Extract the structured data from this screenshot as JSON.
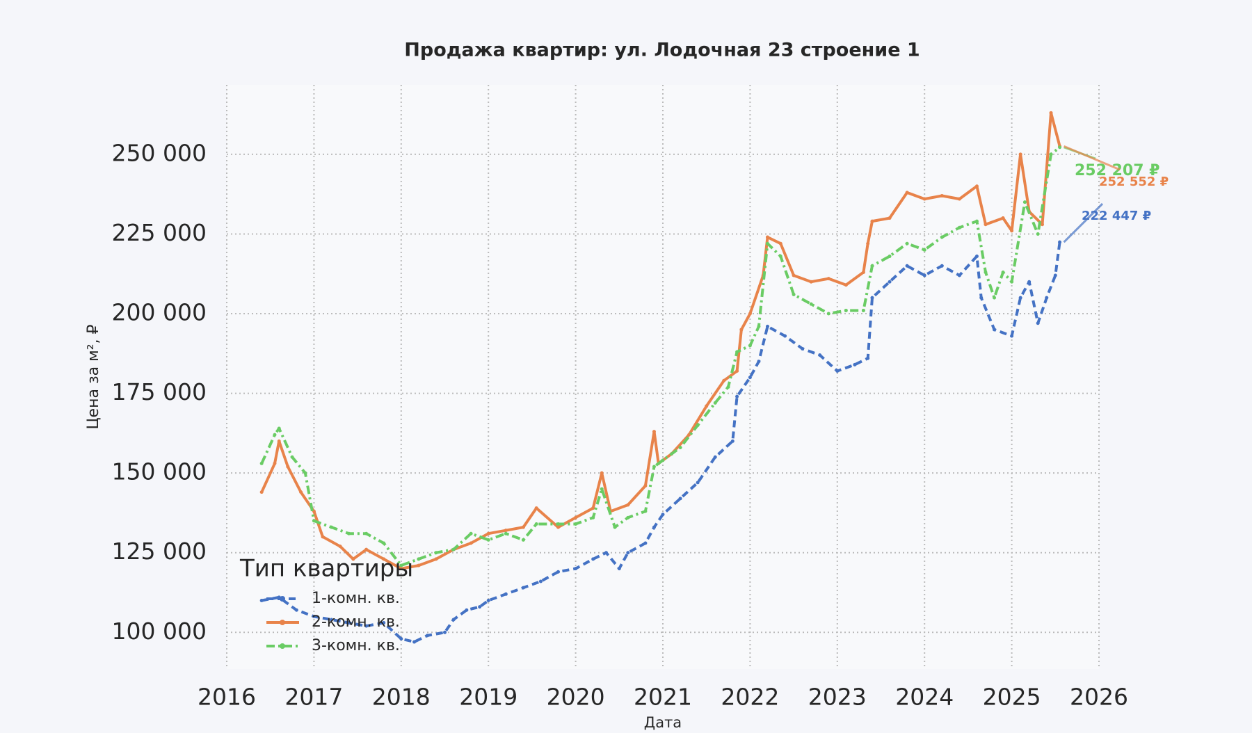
{
  "chart_data": {
    "type": "line",
    "title": "Продажа квартир: ул. Лодочная 23 строение 1",
    "x_label": "Дата",
    "y_label": "Цена за м², ₽",
    "xlim": [
      2016,
      2026
    ],
    "xticks": [
      2016,
      2017,
      2018,
      2019,
      2020,
      2021,
      2022,
      2023,
      2024,
      2025,
      2026
    ],
    "ylim": [
      88500,
      271800
    ],
    "yticks": [
      {
        "value": 100000,
        "label": "100 000"
      },
      {
        "value": 125000,
        "label": "125 000"
      },
      {
        "value": 150000,
        "label": "150 000"
      },
      {
        "value": 175000,
        "label": "175 000"
      },
      {
        "value": 200000,
        "label": "200 000"
      },
      {
        "value": 225000,
        "label": "225 000"
      },
      {
        "value": 250000,
        "label": "250 000"
      }
    ],
    "grid": true,
    "legend_title": "Тип квартиры",
    "legend_position": "lower-left",
    "series": [
      {
        "name": "1-комн. кв.",
        "color": "#4472c4",
        "style": "dashed",
        "x": [
          2016.4,
          2016.6,
          2016.8,
          2017.0,
          2017.2,
          2017.4,
          2017.6,
          2017.8,
          2018.0,
          2018.15,
          2018.3,
          2018.5,
          2018.6,
          2018.75,
          2018.9,
          2019.0,
          2019.2,
          2019.4,
          2019.6,
          2019.8,
          2020.0,
          2020.2,
          2020.35,
          2020.5,
          2020.6,
          2020.8,
          2020.9,
          2021.0,
          2021.2,
          2021.4,
          2021.6,
          2021.8,
          2021.85,
          2022.0,
          2022.1,
          2022.2,
          2022.4,
          2022.6,
          2022.8,
          2023.0,
          2023.2,
          2023.35,
          2023.4,
          2023.6,
          2023.8,
          2024.0,
          2024.2,
          2024.4,
          2024.6,
          2024.65,
          2024.8,
          2025.0,
          2025.1,
          2025.2,
          2025.3,
          2025.4,
          2025.5,
          2025.55
        ],
        "values": [
          110000,
          111000,
          107000,
          105000,
          104000,
          103000,
          102000,
          103000,
          98000,
          97000,
          99000,
          100000,
          104000,
          107000,
          108000,
          110000,
          112000,
          114000,
          116000,
          119000,
          120000,
          123000,
          125000,
          120000,
          125000,
          128000,
          133000,
          137000,
          142000,
          147000,
          155000,
          160000,
          174000,
          180000,
          185000,
          196000,
          193000,
          189000,
          187000,
          182000,
          184000,
          186000,
          205000,
          210000,
          215000,
          212000,
          215000,
          212000,
          218000,
          205000,
          195000,
          193000,
          205000,
          210000,
          197000,
          205000,
          212000,
          222447
        ]
      },
      {
        "name": "2-комн. кв.",
        "color": "#e8834a",
        "style": "solid",
        "x": [
          2016.4,
          2016.55,
          2016.6,
          2016.7,
          2016.85,
          2017.0,
          2017.1,
          2017.3,
          2017.45,
          2017.6,
          2017.8,
          2018.0,
          2018.2,
          2018.4,
          2018.6,
          2018.8,
          2019.0,
          2019.2,
          2019.4,
          2019.55,
          2019.8,
          2020.0,
          2020.2,
          2020.3,
          2020.4,
          2020.6,
          2020.8,
          2020.9,
          2020.95,
          2021.1,
          2021.3,
          2021.5,
          2021.7,
          2021.85,
          2021.9,
          2022.0,
          2022.15,
          2022.2,
          2022.35,
          2022.5,
          2022.7,
          2022.9,
          2023.1,
          2023.3,
          2023.35,
          2023.4,
          2023.6,
          2023.8,
          2024.0,
          2024.2,
          2024.4,
          2024.6,
          2024.7,
          2024.9,
          2025.0,
          2025.1,
          2025.2,
          2025.35,
          2025.45,
          2025.55
        ],
        "values": [
          144000,
          153000,
          160000,
          152000,
          144000,
          138000,
          130000,
          127000,
          123000,
          126000,
          123000,
          120000,
          121000,
          123000,
          126000,
          128000,
          131000,
          132000,
          133000,
          139000,
          133000,
          136000,
          139000,
          150000,
          138000,
          140000,
          146000,
          163000,
          153000,
          156000,
          162000,
          171000,
          179000,
          182000,
          195000,
          200000,
          212000,
          224000,
          222000,
          212000,
          210000,
          211000,
          209000,
          213000,
          222000,
          229000,
          230000,
          238000,
          236000,
          237000,
          236000,
          240000,
          228000,
          230000,
          226000,
          250000,
          232000,
          228000,
          263000,
          252552
        ]
      },
      {
        "name": "3-комн. кв.",
        "color": "#6acc64",
        "style": "dashdot",
        "x": [
          2016.4,
          2016.55,
          2016.6,
          2016.75,
          2016.9,
          2017.0,
          2017.2,
          2017.4,
          2017.6,
          2017.8,
          2018.0,
          2018.2,
          2018.4,
          2018.6,
          2018.8,
          2019.0,
          2019.2,
          2019.4,
          2019.55,
          2019.8,
          2020.0,
          2020.2,
          2020.3,
          2020.45,
          2020.6,
          2020.8,
          2020.9,
          2021.0,
          2021.2,
          2021.4,
          2021.6,
          2021.75,
          2021.85,
          2022.0,
          2022.1,
          2022.2,
          2022.35,
          2022.5,
          2022.7,
          2022.9,
          2023.1,
          2023.3,
          2023.4,
          2023.6,
          2023.8,
          2024.0,
          2024.2,
          2024.4,
          2024.6,
          2024.7,
          2024.8,
          2024.9,
          2025.0,
          2025.15,
          2025.3,
          2025.45,
          2025.55
        ],
        "values": [
          153000,
          162000,
          164000,
          155000,
          150000,
          135000,
          133000,
          131000,
          131000,
          128000,
          121000,
          123000,
          125000,
          126000,
          131000,
          129000,
          131000,
          129000,
          134000,
          134000,
          134000,
          136000,
          145000,
          133000,
          136000,
          138000,
          152000,
          154000,
          158000,
          165000,
          172000,
          177000,
          188000,
          190000,
          196000,
          222000,
          218000,
          206000,
          203000,
          200000,
          201000,
          201000,
          215000,
          218000,
          222000,
          220000,
          224000,
          227000,
          229000,
          213000,
          205000,
          213000,
          210000,
          235000,
          225000,
          250000,
          252207
        ]
      }
    ],
    "annotations": [
      {
        "text": "252 207 ₽",
        "value": 252207,
        "color": "#6acc64"
      },
      {
        "text": "252 552 ₽",
        "value": 252552,
        "color": "#e8834a"
      },
      {
        "text": "222 447 ₽",
        "value": 222447,
        "color": "#4472c4"
      }
    ]
  }
}
